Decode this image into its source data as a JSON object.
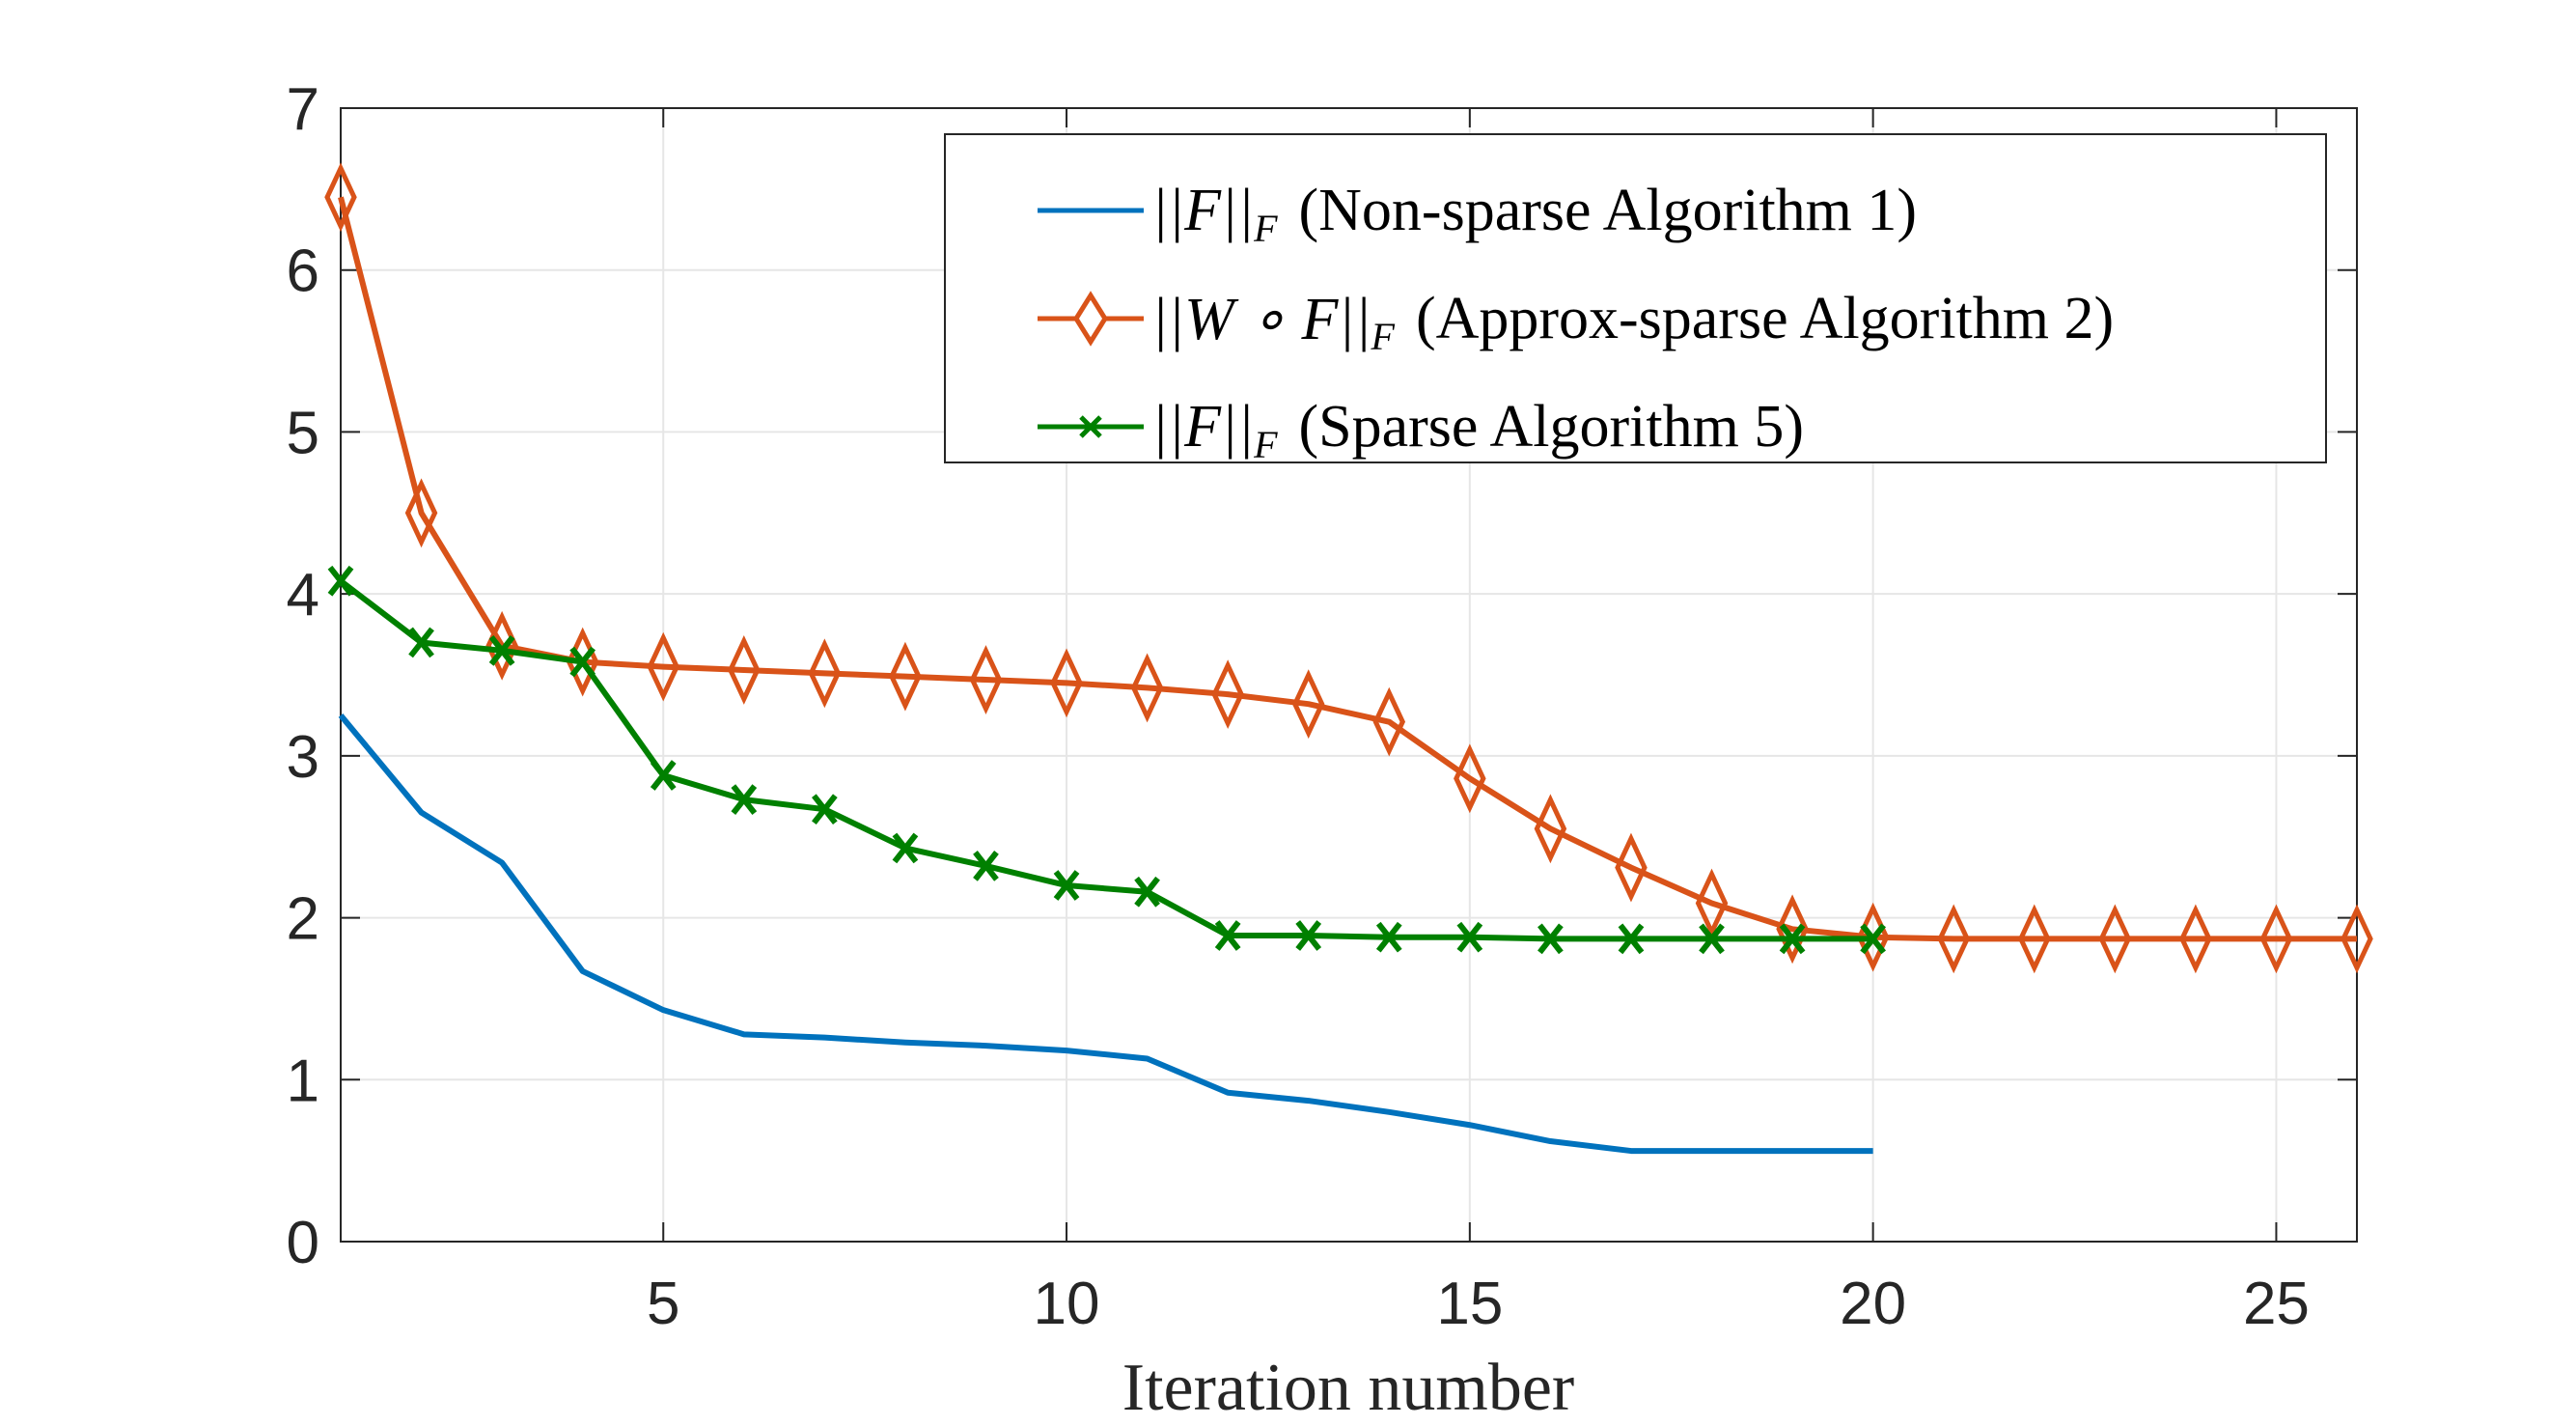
{
  "chart_data": {
    "type": "line",
    "title": "",
    "xlabel": "Iteration number",
    "ylabel": "",
    "xlim": [
      1,
      26
    ],
    "ylim": [
      0,
      7
    ],
    "xticks": [
      5,
      10,
      15,
      20,
      25
    ],
    "yticks": [
      0,
      1,
      2,
      3,
      4,
      5,
      6,
      7
    ],
    "grid": true,
    "legend_placement": "top-right",
    "series": [
      {
        "name": "||F||_F (Non-sparse Algorithm 1)",
        "label_math": "||F||",
        "label_sub": "F",
        "label_text": "(Non-sparse Algorithm 1)",
        "color": "#0072BD",
        "marker": "none",
        "x": [
          1,
          2,
          3,
          4,
          5,
          6,
          7,
          8,
          9,
          10,
          11,
          12,
          13,
          14,
          15,
          16,
          17,
          18,
          19,
          20
        ],
        "y": [
          3.25,
          2.65,
          2.34,
          1.67,
          1.43,
          1.28,
          1.26,
          1.23,
          1.21,
          1.18,
          1.13,
          0.92,
          0.87,
          0.8,
          0.72,
          0.62,
          0.56,
          0.56,
          0.56,
          0.56
        ]
      },
      {
        "name": "||W ∘ F||_F (Approx-sparse Algorithm 2)",
        "label_math": "||W ∘ F||",
        "label_sub": "F",
        "label_text": "(Approx-sparse Algorithm 2)",
        "color": "#D95319",
        "marker": "diamond",
        "x": [
          1,
          2,
          3,
          4,
          5,
          6,
          7,
          8,
          9,
          10,
          11,
          12,
          13,
          14,
          15,
          16,
          17,
          18,
          19,
          20,
          21,
          22,
          23,
          24,
          25,
          26
        ],
        "y": [
          6.45,
          4.5,
          3.68,
          3.58,
          3.55,
          3.53,
          3.51,
          3.49,
          3.47,
          3.45,
          3.42,
          3.38,
          3.32,
          3.21,
          2.86,
          2.55,
          2.31,
          2.09,
          1.93,
          1.88,
          1.87,
          1.87,
          1.87,
          1.87,
          1.87,
          1.87
        ]
      },
      {
        "name": "||F||_F (Sparse Algorithm 5)",
        "label_math": "||F||",
        "label_sub": "F",
        "label_text": "(Sparse Algorithm 5)",
        "color": "#008000",
        "marker": "x",
        "x": [
          1,
          2,
          3,
          4,
          5,
          6,
          7,
          8,
          9,
          10,
          11,
          12,
          13,
          14,
          15,
          16,
          17,
          18,
          19,
          20
        ],
        "y": [
          4.08,
          3.7,
          3.65,
          3.58,
          2.88,
          2.73,
          2.67,
          2.43,
          2.32,
          2.2,
          2.16,
          1.89,
          1.89,
          1.88,
          1.88,
          1.87,
          1.87,
          1.87,
          1.87,
          1.87
        ]
      }
    ]
  }
}
